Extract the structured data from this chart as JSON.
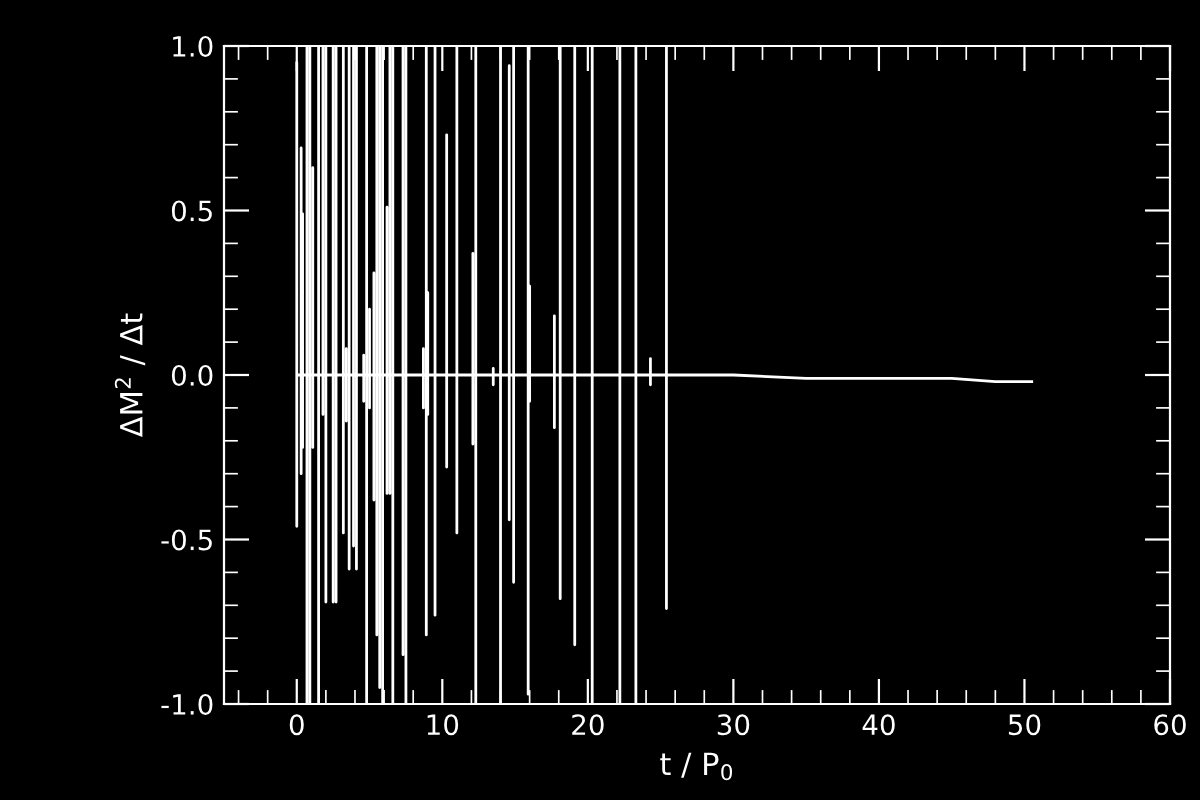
{
  "chart_data": {
    "type": "line",
    "xlabel": "t / P$_{0}$",
    "ylabel": "ΔM$^{2}$ / Δt",
    "xlim": [
      -5,
      60
    ],
    "ylim": [
      -1.0,
      1.0
    ],
    "xticks": [
      {
        "value": -4,
        "label": null
      },
      {
        "value": -2,
        "label": null
      },
      0,
      {
        "value": 2,
        "label": null
      },
      {
        "value": 4,
        "label": null
      },
      {
        "value": 6,
        "label": null
      },
      {
        "value": 8,
        "label": null
      },
      10,
      {
        "value": 12,
        "label": null
      },
      {
        "value": 14,
        "label": null
      },
      {
        "value": 16,
        "label": null
      },
      {
        "value": 18,
        "label": null
      },
      20,
      {
        "value": 22,
        "label": null
      },
      {
        "value": 24,
        "label": null
      },
      {
        "value": 26,
        "label": null
      },
      {
        "value": 28,
        "label": null
      },
      30,
      {
        "value": 32,
        "label": null
      },
      {
        "value": 34,
        "label": null
      },
      {
        "value": 36,
        "label": null
      },
      {
        "value": 38,
        "label": null
      },
      40,
      {
        "value": 42,
        "label": null
      },
      {
        "value": 44,
        "label": null
      },
      {
        "value": 46,
        "label": null
      },
      {
        "value": 48,
        "label": null
      },
      50,
      {
        "value": 52,
        "label": null
      },
      {
        "value": 54,
        "label": null
      },
      {
        "value": 56,
        "label": null
      },
      {
        "value": 58,
        "label": null
      },
      60
    ],
    "yticks": [
      {
        "value": -1.0,
        "label": "-1.0"
      },
      {
        "value": -0.9,
        "label": null
      },
      {
        "value": -0.8,
        "label": null
      },
      {
        "value": -0.7,
        "label": null
      },
      {
        "value": -0.6,
        "label": null
      },
      {
        "value": -0.5,
        "label": "-0.5"
      },
      {
        "value": -0.4,
        "label": null
      },
      {
        "value": -0.3,
        "label": null
      },
      {
        "value": -0.2,
        "label": null
      },
      {
        "value": -0.1,
        "label": null
      },
      {
        "value": 0.0,
        "label": "0.0"
      },
      {
        "value": 0.1,
        "label": null
      },
      {
        "value": 0.2,
        "label": null
      },
      {
        "value": 0.3,
        "label": null
      },
      {
        "value": 0.4,
        "label": null
      },
      {
        "value": 0.5,
        "label": "0.5"
      },
      {
        "value": 0.6,
        "label": null
      },
      {
        "value": 0.7,
        "label": null
      },
      {
        "value": 0.8,
        "label": null
      },
      {
        "value": 0.9,
        "label": null
      },
      {
        "value": 1.0,
        "label": "1.0"
      }
    ],
    "grid": false,
    "legend": false,
    "marker": "none",
    "line_style": "solid",
    "series": [
      {
        "color": "#ffffff",
        "x": [
          0.0,
          0.0,
          0.0,
          0.0,
          0.3,
          0.3,
          0.3,
          0.3,
          0.4,
          0.4,
          0.4,
          0.4,
          0.7,
          0.7,
          0.7,
          0.7,
          0.9,
          0.9,
          0.9,
          0.9,
          1.1,
          1.1,
          1.1,
          1.1,
          1.5,
          1.5,
          1.5,
          1.5,
          1.8,
          1.8,
          1.8,
          1.8,
          2.0,
          2.0,
          2.0,
          2.0,
          2.5,
          2.5,
          2.5,
          2.5,
          2.7,
          2.7,
          2.7,
          2.7,
          3.2,
          3.2,
          3.2,
          3.2,
          3.4,
          3.4,
          3.4,
          3.4,
          3.6,
          3.6,
          3.6,
          3.6,
          3.9,
          3.9,
          3.9,
          3.9,
          4.1,
          4.1,
          4.1,
          4.1,
          4.6,
          4.6,
          4.6,
          4.6,
          4.8,
          4.8,
          4.8,
          4.8,
          5.0,
          5.0,
          5.0,
          5.0,
          5.3,
          5.3,
          5.3,
          5.3,
          5.5,
          5.5,
          5.5,
          5.5,
          5.7,
          5.7,
          5.7,
          5.7,
          5.9,
          5.9,
          5.9,
          5.9,
          6.2,
          6.2,
          6.2,
          6.2,
          6.4,
          6.4,
          6.4,
          6.4,
          6.6,
          6.6,
          6.6,
          6.6,
          7.3,
          7.3,
          7.3,
          7.3,
          7.5,
          7.5,
          7.5,
          7.5,
          8.7,
          8.7,
          8.7,
          8.7,
          8.9,
          8.9,
          8.9,
          8.9,
          9.0,
          9.0,
          9.0,
          9.0,
          9.5,
          9.5,
          9.5,
          9.5,
          10.3,
          10.3,
          10.3,
          10.3,
          11.0,
          11.0,
          11.0,
          11.0,
          12.1,
          12.1,
          12.1,
          12.1,
          12.3,
          12.3,
          12.3,
          12.3,
          13.5,
          13.5,
          13.5,
          13.5,
          14.0,
          14.0,
          14.0,
          14.0,
          14.6,
          14.6,
          14.6,
          14.6,
          14.9,
          14.9,
          14.9,
          14.9,
          15.9,
          15.9,
          15.9,
          15.9,
          16.0,
          16.0,
          16.0,
          16.0,
          17.7,
          17.7,
          17.7,
          17.7,
          18.1,
          18.1,
          18.1,
          18.1,
          19.1,
          19.1,
          19.1,
          19.1,
          20.3,
          20.3,
          20.3,
          20.3,
          22.2,
          22.2,
          22.2,
          22.2,
          23.3,
          23.3,
          23.3,
          23.3,
          24.3,
          24.3,
          24.3,
          24.3,
          25.4,
          25.4,
          25.4,
          25.4,
          27,
          30,
          35,
          40,
          45,
          48,
          50.5
        ],
        "values": [
          0,
          0.95,
          -0.46,
          0,
          0,
          0.69,
          -0.3,
          0,
          0,
          0.49,
          -0.22,
          0,
          0,
          1.0,
          -1.0,
          0,
          0,
          1.0,
          -1.0,
          0,
          0,
          0.63,
          -0.22,
          0,
          0,
          1.0,
          -1.0,
          0,
          0,
          1.0,
          -0.12,
          0,
          0,
          1.0,
          -0.69,
          0,
          0,
          1.0,
          -0.69,
          0,
          0,
          1.0,
          -0.69,
          0,
          0,
          1.0,
          -0.48,
          0,
          0,
          0.08,
          -0.14,
          0,
          0,
          1.0,
          -0.59,
          0,
          0,
          1.0,
          -0.52,
          0,
          0,
          1.0,
          -0.59,
          0,
          0,
          0.06,
          -0.08,
          0,
          0,
          1.0,
          -1.0,
          0,
          0,
          0.2,
          -0.1,
          0,
          0,
          0.31,
          -0.38,
          0,
          0,
          1.0,
          -0.79,
          0,
          0,
          1.0,
          -0.95,
          0,
          0,
          1.0,
          -1.0,
          0,
          0,
          0.51,
          -0.36,
          0,
          0,
          1.0,
          -0.36,
          0,
          0,
          1.0,
          -1.0,
          0,
          0,
          1.0,
          -0.85,
          0,
          0,
          1.0,
          -1.0,
          0,
          0,
          0.08,
          -0.1,
          0,
          0,
          1.0,
          -0.79,
          0,
          0,
          0.25,
          -0.12,
          0,
          0,
          1.0,
          -0.73,
          0,
          0,
          0.73,
          -0.28,
          0,
          0,
          1.0,
          -0.48,
          0,
          0,
          0.37,
          -0.21,
          0,
          0,
          1.0,
          -1.0,
          0,
          0,
          0.02,
          -0.03,
          0,
          0,
          1.0,
          -1.0,
          0,
          0,
          0.94,
          -0.44,
          0,
          0,
          1.0,
          -0.63,
          0,
          0,
          1.0,
          -0.97,
          0,
          0,
          0.27,
          -0.08,
          0,
          0,
          0.18,
          -0.16,
          0,
          0,
          1.0,
          -0.68,
          0,
          0,
          1.0,
          -0.82,
          0,
          0,
          1.0,
          -1.0,
          0,
          0,
          1.0,
          -1.0,
          0,
          0,
          1.0,
          -1.0,
          0,
          0,
          0.05,
          -0.03,
          0,
          0,
          1.0,
          -0.71,
          0,
          0.0,
          0.0,
          -0.01,
          -0.01,
          -0.01,
          -0.02,
          -0.02
        ]
      }
    ]
  }
}
